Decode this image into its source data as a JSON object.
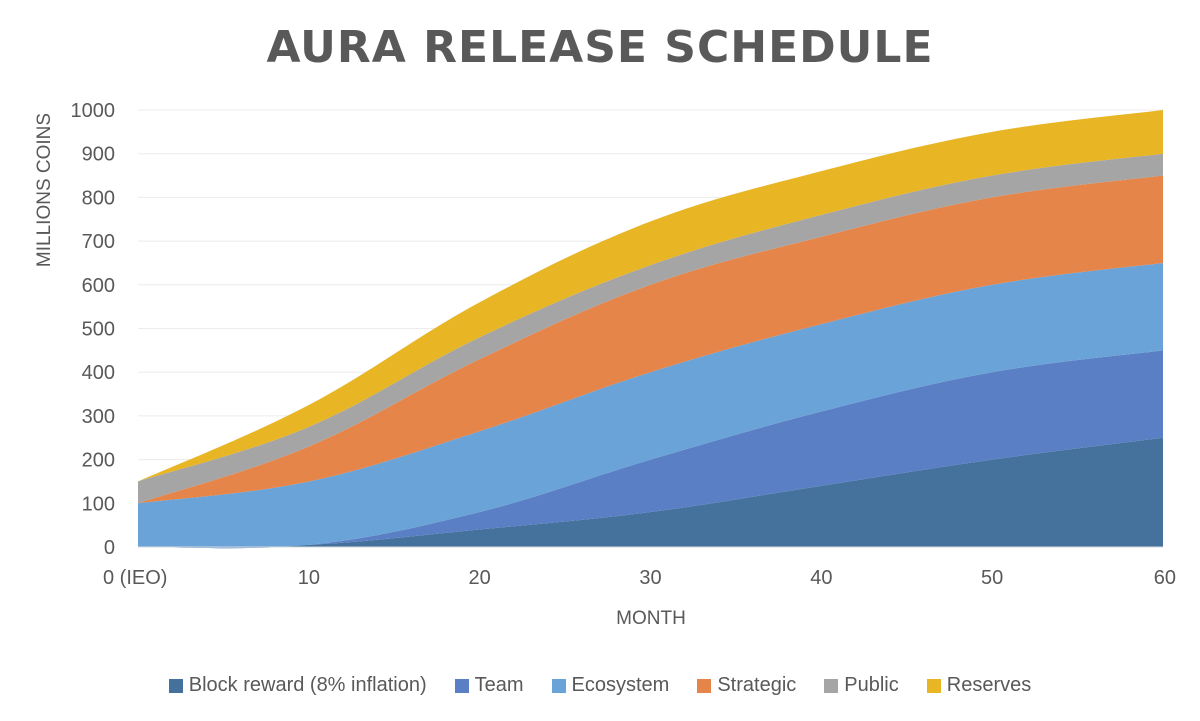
{
  "chart_data": {
    "type": "area",
    "stacked": true,
    "title": "AURA RELEASE SCHEDULE",
    "xlabel": "MONTH",
    "ylabel": "MILLIONS COINS",
    "categories": [
      "0 (IEO)",
      "10",
      "20",
      "30",
      "40",
      "50",
      "60"
    ],
    "ylim": [
      0,
      1000
    ],
    "yticks": [
      0,
      100,
      200,
      300,
      400,
      500,
      600,
      700,
      800,
      900,
      1000
    ],
    "grid": true,
    "legend_position": "bottom",
    "series": [
      {
        "name": "Block reward (8% inflation)",
        "color": "#44729c",
        "values": [
          0,
          5,
          40,
          80,
          140,
          200,
          250
        ]
      },
      {
        "name": "Team",
        "color": "#5b7fc4",
        "values": [
          0,
          0,
          40,
          120,
          170,
          200,
          200
        ]
      },
      {
        "name": "Ecosystem",
        "color": "#6aa3d8",
        "values": [
          100,
          145,
          185,
          200,
          200,
          200,
          200
        ]
      },
      {
        "name": "Strategic",
        "color": "#e5854a",
        "values": [
          0,
          80,
          165,
          200,
          200,
          200,
          200
        ]
      },
      {
        "name": "Public",
        "color": "#a5a5a5",
        "values": [
          50,
          45,
          50,
          45,
          50,
          50,
          50
        ]
      },
      {
        "name": "Reserves",
        "color": "#e8b624",
        "values": [
          0,
          50,
          80,
          100,
          100,
          100,
          100
        ]
      }
    ]
  }
}
